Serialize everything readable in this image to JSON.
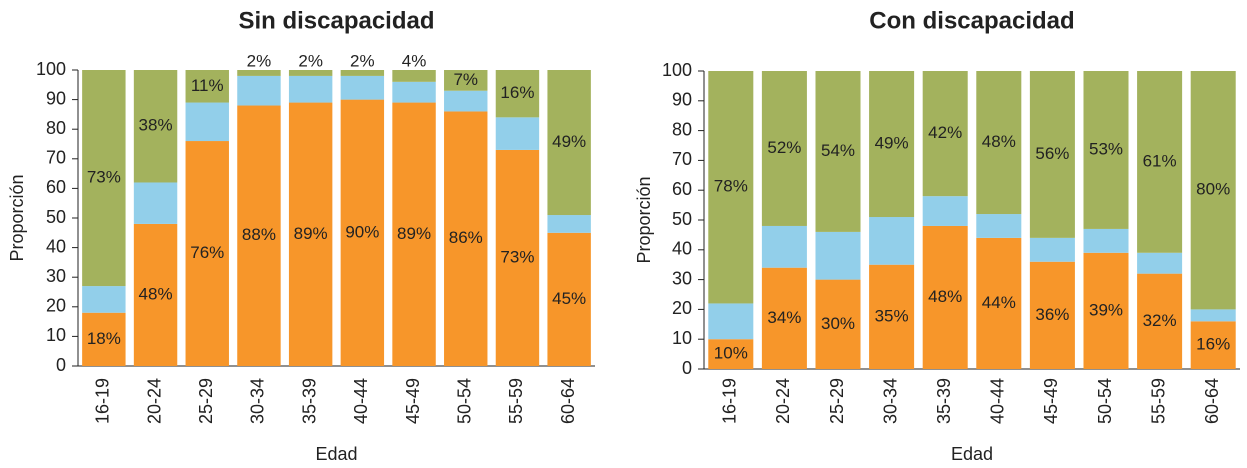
{
  "chart_data": [
    {
      "type": "bar",
      "stacked": true,
      "title": "Sin discapacidad",
      "xlabel": "Edad",
      "ylabel": "Proporción",
      "categories": [
        "16-19",
        "20-24",
        "25-29",
        "30-34",
        "35-39",
        "40-44",
        "45-49",
        "50-54",
        "55-59",
        "60-64"
      ],
      "ylim": [
        0,
        100
      ],
      "yticks": [
        0,
        10,
        20,
        30,
        40,
        50,
        60,
        70,
        80,
        90,
        100
      ],
      "series": [
        {
          "color": "#f7962a",
          "values": [
            18,
            48,
            76,
            88,
            89,
            90,
            89,
            86,
            73,
            45
          ],
          "value_labels": [
            "18%",
            "48%",
            "76%",
            "88%",
            "89%",
            "90%",
            "89%",
            "86%",
            "73%",
            "45%"
          ]
        },
        {
          "color": "#92cfea",
          "values": [
            9,
            14,
            13,
            10,
            9,
            8,
            7,
            7,
            11,
            6
          ]
        },
        {
          "color": "#a3b25d",
          "values": [
            73,
            38,
            11,
            2,
            2,
            2,
            4,
            7,
            16,
            49
          ],
          "value_labels": [
            "73%",
            "38%",
            "11%",
            "2%",
            "2%",
            "2%",
            "4%",
            "7%",
            "16%",
            "49%"
          ]
        }
      ]
    },
    {
      "type": "bar",
      "stacked": true,
      "title": "Con discapacidad",
      "xlabel": "Edad",
      "ylabel": "Proporción",
      "categories": [
        "16-19",
        "20-24",
        "25-29",
        "30-34",
        "35-39",
        "40-44",
        "45-49",
        "50-54",
        "55-59",
        "60-64"
      ],
      "ylim": [
        0,
        100
      ],
      "yticks": [
        0,
        10,
        20,
        30,
        40,
        50,
        60,
        70,
        80,
        90,
        100
      ],
      "series": [
        {
          "color": "#f7962a",
          "values": [
            10,
            34,
            30,
            35,
            48,
            44,
            36,
            39,
            32,
            16
          ],
          "value_labels": [
            "10%",
            "34%",
            "30%",
            "35%",
            "48%",
            "44%",
            "36%",
            "39%",
            "32%",
            "16%"
          ]
        },
        {
          "color": "#92cfea",
          "values": [
            12,
            14,
            16,
            16,
            10,
            8,
            8,
            8,
            7,
            4
          ]
        },
        {
          "color": "#a3b25d",
          "values": [
            78,
            52,
            54,
            49,
            42,
            48,
            56,
            53,
            61,
            80
          ],
          "value_labels": [
            "78%",
            "52%",
            "54%",
            "49%",
            "42%",
            "48%",
            "56%",
            "53%",
            "61%",
            "80%"
          ]
        }
      ]
    }
  ]
}
